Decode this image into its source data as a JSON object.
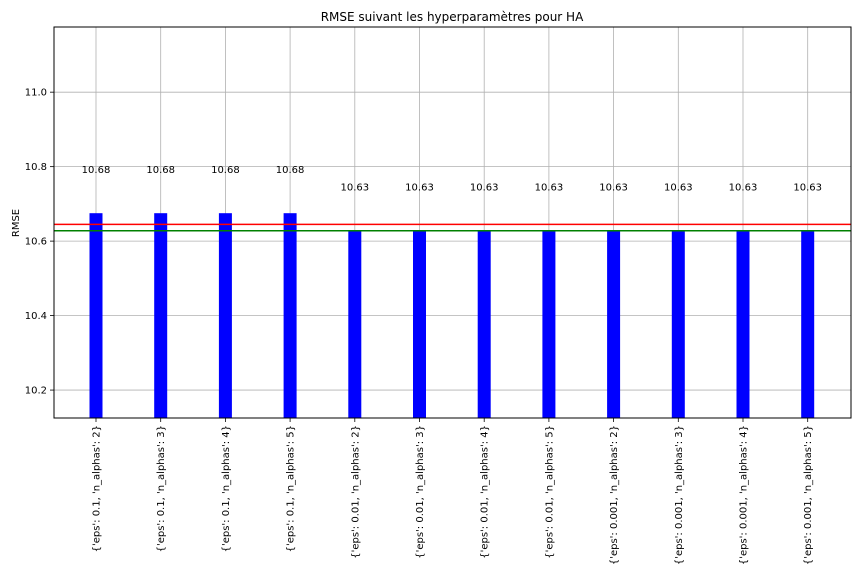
{
  "chart_data": {
    "type": "bar",
    "title": "RMSE suivant les hyperparamètres pour HA",
    "xlabel": "",
    "ylabel": "RMSE",
    "ylim": [
      10.125,
      11.175
    ],
    "yticks": [
      "10.2",
      "10.4",
      "10.6",
      "10.8",
      "11.0"
    ],
    "grid": true,
    "bar_color": "#0000ff",
    "categories": [
      "{'eps': 0.1, 'n_alphas': 2}",
      "{'eps': 0.1, 'n_alphas': 3}",
      "{'eps': 0.1, 'n_alphas': 4}",
      "{'eps': 0.1, 'n_alphas': 5}",
      "{'eps': 0.01, 'n_alphas': 2}",
      "{'eps': 0.01, 'n_alphas': 3}",
      "{'eps': 0.01, 'n_alphas': 4}",
      "{'eps': 0.01, 'n_alphas': 5}",
      "{'eps': 0.001, 'n_alphas': 2}",
      "{'eps': 0.001, 'n_alphas': 3}",
      "{'eps': 0.001, 'n_alphas': 4}",
      "{'eps': 0.001, 'n_alphas': 5}"
    ],
    "values": [
      10.675,
      10.675,
      10.675,
      10.675,
      10.628,
      10.628,
      10.628,
      10.628,
      10.628,
      10.628,
      10.628,
      10.628
    ],
    "data_labels": [
      "10.68",
      "10.68",
      "10.68",
      "10.68",
      "10.63",
      "10.63",
      "10.63",
      "10.63",
      "10.63",
      "10.63",
      "10.63",
      "10.63"
    ],
    "hlines": [
      {
        "value": 10.645,
        "color": "#ff0000"
      },
      {
        "value": 10.628,
        "color": "#008000"
      }
    ]
  }
}
